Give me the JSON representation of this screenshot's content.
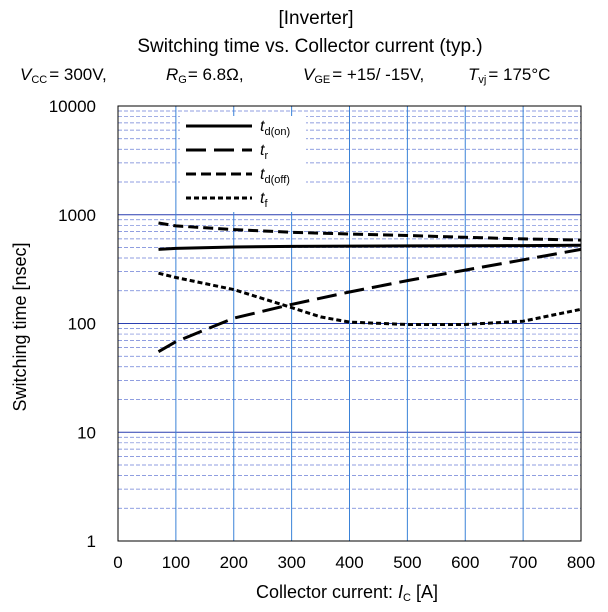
{
  "chart_data": {
    "type": "line",
    "title": "[Inverter]",
    "subtitle": "Switching time vs. Collector current  (typ.)",
    "conditions": {
      "vcc": {
        "sym": "V",
        "sub": "CC",
        "text": "= 300V,"
      },
      "rg": {
        "sym": "R",
        "sub": "G",
        "text": "= 6.8Ω,"
      },
      "vge": {
        "sym": "V",
        "sub": "GE",
        "text": "=  +15/ -15V,"
      },
      "tvj": {
        "sym": "T",
        "sub": "vj",
        "text": "= 175°C"
      }
    },
    "xlabel": {
      "text": "Collector current: ",
      "sym": "I",
      "sub": "C",
      "unit": " [A]"
    },
    "ylabel": "Switching time  [nsec]",
    "xlim": [
      0,
      800
    ],
    "ylim": [
      1,
      10000
    ],
    "yscale": "log",
    "xticks": [
      "0",
      "100",
      "200",
      "300",
      "400",
      "500",
      "600",
      "700",
      "800"
    ],
    "yticks": [
      "1",
      "10",
      "100",
      "1000",
      "10000"
    ],
    "grid": true,
    "legend_position": "top-left",
    "series": [
      {
        "name": "td(on)",
        "sym": "t",
        "sub": "d(on)",
        "style": "solid",
        "x": [
          70,
          100,
          200,
          300,
          400,
          500,
          600,
          700,
          800
        ],
        "y": [
          480,
          490,
          505,
          512,
          515,
          517,
          518,
          520,
          525
        ]
      },
      {
        "name": "tr",
        "sym": "t",
        "sub": "r",
        "style": "long-dash",
        "x": [
          70,
          100,
          200,
          300,
          400,
          500,
          600,
          700,
          800
        ],
        "y": [
          55,
          68,
          112,
          150,
          195,
          248,
          310,
          385,
          480
        ]
      },
      {
        "name": "td(off)",
        "sym": "t",
        "sub": "d(off)",
        "style": "dash",
        "x": [
          70,
          100,
          200,
          300,
          400,
          500,
          600,
          700,
          800
        ],
        "y": [
          840,
          790,
          730,
          690,
          665,
          645,
          620,
          600,
          585
        ]
      },
      {
        "name": "tf",
        "sym": "t",
        "sub": "f",
        "style": "short-dash",
        "x": [
          70,
          100,
          200,
          300,
          350,
          400,
          500,
          600,
          700,
          800
        ],
        "y": [
          290,
          265,
          205,
          140,
          115,
          103,
          98,
          98,
          105,
          135
        ]
      }
    ]
  }
}
